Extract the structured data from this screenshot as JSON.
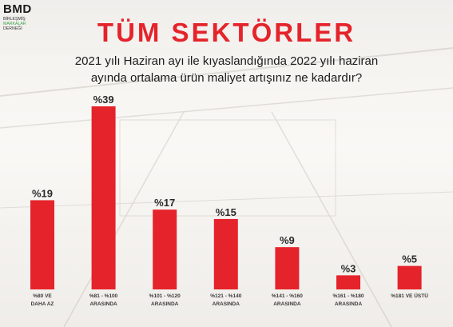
{
  "logo": {
    "name": "BMD",
    "sub_line1": "BİRLEŞMİŞ",
    "sub_line2": "MARKALAR",
    "sub_line3": "DERNEĞİ"
  },
  "header": {
    "title": "TÜM SEKTÖRLER",
    "subtitle_line1": "2021 yılı Haziran ayı ile kıyaslandığında 2022 yılı haziran",
    "subtitle_line2": "ayında ortalama ürün maliyet artışınız ne kadardır?"
  },
  "colors": {
    "bar": "#e5232b",
    "title": "#e5232b"
  },
  "chart_data": {
    "type": "bar",
    "categories": [
      [
        "%80 VE",
        "DAHA AZ"
      ],
      [
        "%81 - %100",
        "ARASINDA"
      ],
      [
        "%101 - %120",
        "ARASINDA"
      ],
      [
        "%121 - %140",
        "ARASINDA"
      ],
      [
        "%141 - %160",
        "ARASINDA"
      ],
      [
        "%161 - %180",
        "ARASINDA"
      ],
      [
        "%181 VE ÜSTÜ"
      ]
    ],
    "values": [
      19,
      39,
      17,
      15,
      9,
      3,
      5
    ],
    "value_labels": [
      "%19",
      "%39",
      "%17",
      "%15",
      "%9",
      "%3",
      "%5"
    ],
    "ylim": [
      0,
      39
    ],
    "grid": false,
    "legend": "none"
  }
}
